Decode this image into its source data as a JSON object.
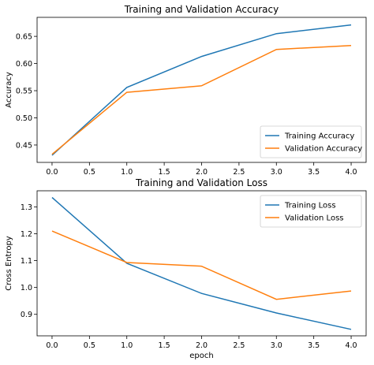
{
  "chart_data": [
    {
      "type": "line",
      "title": "Training and Validation Accuracy",
      "xlabel": "",
      "ylabel": "Accuracy",
      "x": [
        0,
        1,
        2,
        3,
        4
      ],
      "xlim": [
        -0.2,
        4.2
      ],
      "ylim": [
        0.418,
        0.685
      ],
      "xticks": [
        0.0,
        0.5,
        1.0,
        1.5,
        2.0,
        2.5,
        3.0,
        3.5,
        4.0
      ],
      "yticks": [
        0.45,
        0.5,
        0.55,
        0.6,
        0.65
      ],
      "grid": false,
      "legend_position": "lower right",
      "series": [
        {
          "name": "Training Accuracy",
          "color": "#1f77b4",
          "values": [
            0.431,
            0.556,
            0.613,
            0.655,
            0.671
          ]
        },
        {
          "name": "Validation Accuracy",
          "color": "#ff7f0e",
          "values": [
            0.433,
            0.547,
            0.559,
            0.626,
            0.633
          ]
        }
      ]
    },
    {
      "type": "line",
      "title": "Training and Validation Loss",
      "xlabel": "epoch",
      "ylabel": "Cross Entropy",
      "x": [
        0,
        1,
        2,
        3,
        4
      ],
      "xlim": [
        -0.2,
        4.2
      ],
      "ylim": [
        0.82,
        1.36
      ],
      "xticks": [
        0.0,
        0.5,
        1.0,
        1.5,
        2.0,
        2.5,
        3.0,
        3.5,
        4.0
      ],
      "yticks": [
        0.9,
        1.0,
        1.1,
        1.2,
        1.3
      ],
      "grid": false,
      "legend_position": "upper right",
      "series": [
        {
          "name": "Training Loss",
          "color": "#1f77b4",
          "values": [
            1.335,
            1.09,
            0.978,
            0.905,
            0.844
          ]
        },
        {
          "name": "Validation Loss",
          "color": "#ff7f0e",
          "values": [
            1.21,
            1.093,
            1.079,
            0.956,
            0.987
          ]
        }
      ]
    }
  ]
}
